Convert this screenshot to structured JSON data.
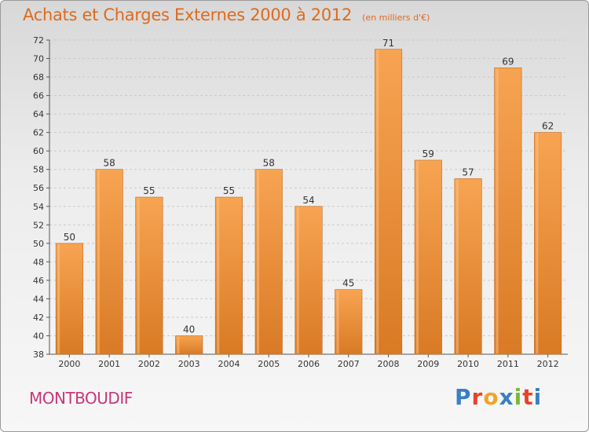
{
  "header": {
    "title": "Achats et Charges Externes 2000 à 2012",
    "subtitle": "(en milliers d'€)"
  },
  "footer": {
    "commune": "MONTBOUDIF",
    "logo_letters": [
      "P",
      "r",
      "o",
      "x",
      "i",
      "t",
      "i"
    ]
  },
  "colors": {
    "bar_light": "#f7a452",
    "bar_dark": "#d97a25",
    "title": "#e06a1c",
    "commune": "#c8377a",
    "logo": [
      "#3b7ec4",
      "#e5432a",
      "#f2a22b",
      "#3b7ec4",
      "#7ab83a",
      "#e5432a",
      "#3b7ec4"
    ]
  },
  "chart_data": {
    "type": "bar",
    "title": "Achats et Charges Externes 2000 à 2012",
    "subtitle": "(en milliers d'€)",
    "categories": [
      "2000",
      "2001",
      "2002",
      "2003",
      "2004",
      "2005",
      "2006",
      "2007",
      "2008",
      "2009",
      "2010",
      "2011",
      "2012"
    ],
    "values": [
      50,
      58,
      55,
      40,
      55,
      58,
      54,
      45,
      71,
      59,
      57,
      69,
      62
    ],
    "xlabel": "",
    "ylabel": "",
    "ylim": [
      38,
      72
    ],
    "ytick_step": 2,
    "grid": true,
    "legend": "none"
  }
}
